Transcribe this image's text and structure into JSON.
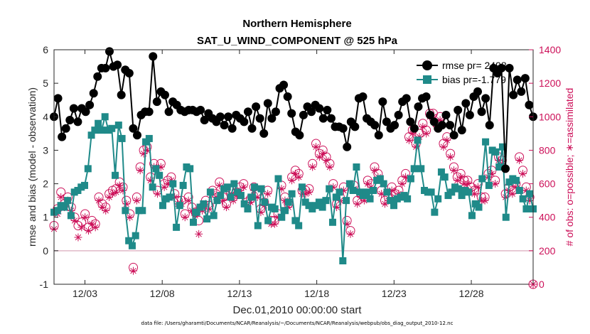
{
  "chart_data": {
    "type": "line",
    "title": "Northern Hemisphere",
    "subtitle": "SAT_U_WIND_COMPONENT @ 525 hPa",
    "xlabel": "Dec.01,2010 00:00:00 start",
    "ylabel_left": "rmse and bias (model - observation)",
    "ylabel_right": "# of obs: o=possible; ∗=assimilated",
    "footnote": "data file: /Users/gharamti/Documents/NCAR/Reanalysis/~/Documents/NCAR/Reanalysis/webpub/obs_diag_output_2010-12.nc",
    "xlim": [
      1.0,
      32.0
    ],
    "x_ticks": [
      3,
      8,
      13,
      18,
      23,
      28
    ],
    "x_tick_labels": [
      "12/03",
      "12/08",
      "12/13",
      "12/18",
      "12/23",
      "12/28"
    ],
    "ylim_left": [
      -1,
      6
    ],
    "y_ticks_left": [
      "-1",
      "0",
      "1",
      "2",
      "3",
      "4",
      "5",
      "6"
    ],
    "ylim_right": [
      0,
      1400
    ],
    "y_ticks_right": [
      "0",
      "200",
      "400",
      "600",
      "800",
      "1000",
      "1200",
      "1400"
    ],
    "grid": false,
    "legend_position": "top-right",
    "series": [
      {
        "name": "rmse pr= 2498",
        "axis": "left",
        "color": "#000000",
        "marker": "circle",
        "values": [
          4.0,
          4.55,
          3.4,
          3.65,
          3.9,
          4.25,
          3.85,
          4.25,
          4.15,
          4.35,
          4.7,
          5.2,
          5.45,
          5.45,
          5.95,
          5.5,
          5.55,
          4.65,
          5.4,
          5.3,
          3.65,
          3.45,
          4.05,
          4.15,
          4.15,
          5.8,
          4.45,
          4.75,
          4.65,
          4.15,
          4.45,
          4.35,
          4.2,
          4.15,
          4.2,
          4.2,
          4.15,
          4.2,
          3.9,
          4.1,
          3.95,
          3.85,
          4.0,
          3.75,
          4.0,
          3.65,
          4.05,
          3.95,
          3.85,
          4.15,
          3.65,
          4.3,
          3.95,
          3.5,
          4.4,
          3.95,
          4.15,
          4.85,
          4.95,
          4.6,
          4.1,
          3.55,
          3.45,
          4.05,
          4.3,
          4.15,
          4.35,
          4.25,
          3.95,
          4.2,
          3.95,
          3.7,
          3.7,
          3.65,
          3.1,
          3.85,
          3.7,
          4.55,
          4.6,
          3.95,
          3.85,
          3.75,
          3.45,
          4.45,
          3.85,
          3.65,
          3.75,
          4.05,
          4.45,
          4.55,
          3.85,
          3.65,
          4.3,
          4.55,
          4.6,
          4.05,
          3.85,
          3.65,
          3.75,
          4.05,
          3.75,
          3.45,
          4.2,
          3.6,
          4.4,
          4.05,
          4.6,
          4.75,
          4.15,
          4.55,
          3.75,
          5.45,
          5.3,
          5.45,
          2.45,
          5.45,
          4.65,
          5.1,
          4.75,
          5.15,
          4.35,
          4.0
        ]
      },
      {
        "name": "bias pr=-1.779",
        "axis": "left",
        "color": "#1f8a89",
        "marker": "square",
        "values": [
          1.15,
          1.2,
          1.35,
          1.3,
          1.5,
          1.05,
          1.75,
          1.8,
          1.9,
          1.95,
          2.45,
          3.45,
          3.6,
          3.8,
          3.6,
          4.0,
          3.6,
          3.65,
          2.25,
          3.75,
          3.35,
          1.2,
          0.3,
          0.15,
          0.45,
          1.2,
          1.2,
          3.25,
          3.35,
          1.9,
          2.45,
          2.25,
          1.35,
          1.55,
          1.6,
          2.0,
          0.7,
          1.35,
          1.95,
          2.5,
          2.45,
          0.85,
          1.15,
          1.3,
          1.4,
          0.95,
          1.75,
          1.05,
          1.5,
          1.65,
          1.85,
          1.9,
          1.6,
          2.0,
          1.75,
          1.65,
          1.4,
          1.25,
          1.6,
          1.9,
          0.75,
          1.85,
          1.45,
          0.9,
          1.3,
          1.25,
          2.15,
          1.0,
          1.2,
          1.45,
          1.7,
          0.9,
          0.75,
          1.9,
          1.45,
          1.35,
          1.25,
          1.35,
          1.45,
          1.3,
          1.5,
          1.85,
          0.85,
          1.6,
          1.75,
          -0.3,
          1.5,
          2.0,
          1.8,
          2.5,
          1.75,
          1.65,
          1.75,
          1.55,
          1.8,
          2.1,
          2.15,
          2.0,
          1.75,
          1.5,
          1.35,
          1.55,
          1.6,
          1.65,
          1.55,
          2.15,
          2.45,
          3.3,
          2.45,
          1.8,
          1.75,
          1.75,
          1.15,
          1.55,
          2.35,
          2.2,
          1.65,
          1.75,
          1.9,
          1.85,
          1.65,
          1.8,
          1.75,
          1.05,
          1.4,
          1.3,
          2.15,
          3.25,
          1.95,
          3.0,
          2.95,
          2.5,
          3.1,
          1.0,
          2.05,
          2.15,
          2.1,
          1.8,
          1.55,
          1.25,
          1.7,
          1.25
        ]
      },
      {
        "name": "obs possible",
        "axis": "right",
        "color": "#cc0f58",
        "marker": "open-circle",
        "values": [
          350,
          450,
          550,
          480,
          520,
          460,
          400,
          350,
          370,
          420,
          340,
          380,
          360,
          520,
          480,
          460,
          540,
          560,
          570,
          610,
          580,
          500,
          420,
          100,
          520,
          700,
          800,
          820,
          640,
          720,
          560,
          720,
          600,
          620,
          640,
          540,
          500,
          500,
          420,
          520,
          460,
          430,
          380,
          460,
          500,
          470,
          560,
          540,
          610,
          520,
          480,
          560,
          520,
          550,
          580,
          600,
          490,
          510,
          580,
          540,
          450,
          490,
          560,
          380,
          380,
          420,
          590,
          520,
          480,
          640,
          680,
          660,
          560,
          560,
          570,
          720,
          840,
          780,
          800,
          760,
          720,
          600,
          480,
          520,
          580,
          380,
          320,
          590,
          500,
          540,
          520,
          620,
          600,
          700,
          660,
          560,
          500,
          520,
          580,
          540,
          560,
          620,
          660,
          880,
          920,
          840,
          900,
          960,
          920,
          1020,
          1020,
          960,
          1000,
          840,
          880,
          780,
          700,
          640,
          660,
          620,
          620,
          580,
          560,
          600,
          520,
          520,
          660,
          680,
          620,
          760,
          740,
          540,
          580,
          560,
          600,
          760,
          680,
          580,
          520,
          0
        ]
      },
      {
        "name": "obs assimilated",
        "axis": "right",
        "color": "#cc0f58",
        "marker": "asterisk",
        "values": [
          330,
          420,
          520,
          460,
          500,
          440,
          380,
          280,
          340,
          400,
          320,
          360,
          340,
          500,
          460,
          440,
          520,
          540,
          550,
          590,
          560,
          480,
          400,
          80,
          500,
          680,
          780,
          800,
          620,
          700,
          540,
          700,
          580,
          600,
          620,
          520,
          480,
          480,
          400,
          500,
          440,
          410,
          300,
          440,
          480,
          450,
          540,
          520,
          590,
          500,
          460,
          540,
          500,
          530,
          560,
          580,
          470,
          490,
          560,
          520,
          430,
          470,
          540,
          360,
          360,
          400,
          570,
          500,
          460,
          620,
          660,
          640,
          540,
          540,
          550,
          700,
          820,
          760,
          780,
          740,
          700,
          580,
          460,
          500,
          560,
          360,
          300,
          570,
          480,
          520,
          500,
          600,
          580,
          680,
          640,
          540,
          480,
          500,
          560,
          520,
          540,
          600,
          640,
          860,
          900,
          820,
          880,
          940,
          900,
          1000,
          1000,
          940,
          980,
          820,
          860,
          760,
          680,
          620,
          640,
          600,
          600,
          560,
          540,
          580,
          500,
          500,
          640,
          660,
          600,
          740,
          720,
          520,
          560,
          540,
          580,
          740,
          660,
          560,
          500,
          0
        ]
      }
    ],
    "annotations": [
      {
        "type": "horizontal-line",
        "value": 0,
        "axis": "left",
        "color": "#e0b9c8"
      }
    ]
  }
}
